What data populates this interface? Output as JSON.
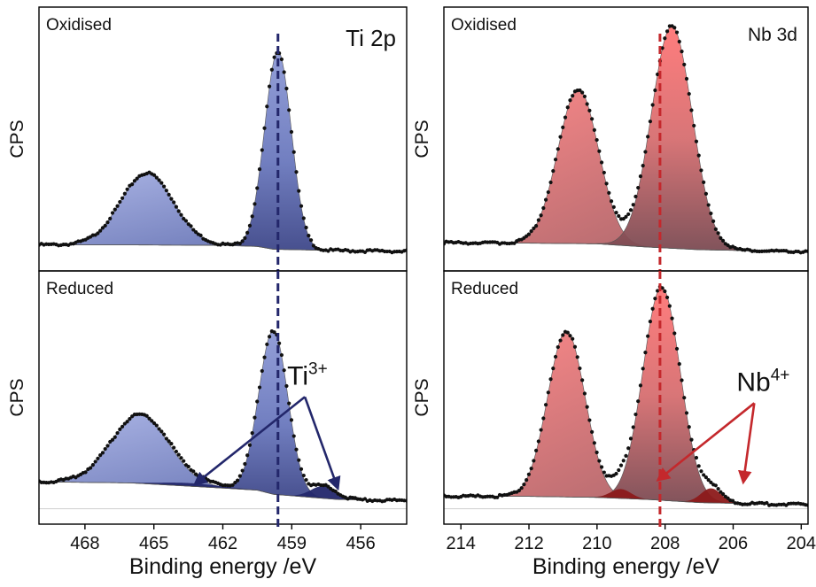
{
  "chart_data": [
    {
      "type": "line",
      "panel_label": "Oxidised",
      "element_label": "Ti 2p",
      "ylabel": "CPS",
      "xlabel": "",
      "xlim": [
        470,
        454
      ],
      "x_reversed": true,
      "xticks": [
        468,
        465,
        462,
        459,
        456
      ],
      "marker_line_x": 459.6,
      "background": {
        "x": [
          470,
          466,
          462,
          460.5,
          459.8,
          457,
          454
        ],
        "y": [
          0.03,
          0.03,
          0.028,
          0.023,
          0.01,
          0.004,
          0.0
        ]
      },
      "components": [
        {
          "center": 465.3,
          "height": 0.33,
          "width": 1.15
        },
        {
          "center": 459.6,
          "height": 0.91,
          "width": 0.58
        }
      ],
      "components_color": "#5c6bb0",
      "points_color": "#111111"
    },
    {
      "type": "line",
      "panel_label": "Reduced",
      "element_label": "",
      "ylabel": "CPS",
      "xlabel": "Binding energy /eV",
      "xlim": [
        470,
        454
      ],
      "x_reversed": true,
      "xticks": [
        468,
        465,
        462,
        459,
        456
      ],
      "marker_line_x": 459.6,
      "annotation": {
        "base": "Ti",
        "sup": "3+",
        "x": 459.2,
        "y": 0.58
      },
      "arrow_targets": [
        {
          "x": 463.2,
          "y": 0.1
        },
        {
          "x": 457.0,
          "y": 0.08
        }
      ],
      "background": {
        "x": [
          470,
          466,
          462,
          460.5,
          459.8,
          457,
          454
        ],
        "y": [
          0.11,
          0.105,
          0.08,
          0.07,
          0.05,
          0.025,
          0.02
        ]
      },
      "components": [
        {
          "center": 465.6,
          "height": 0.33,
          "width": 1.25
        },
        {
          "center": 459.8,
          "height": 0.79,
          "width": 0.63
        }
      ],
      "minor_components": [
        {
          "center": 463.4,
          "height": 0.015,
          "width": 1.3
        },
        {
          "center": 457.6,
          "height": 0.06,
          "width": 0.55
        }
      ],
      "components_color": "#5c6bb0",
      "minor_color": "#23276b",
      "points_color": "#111111"
    },
    {
      "type": "line",
      "panel_label": "Oxidised",
      "element_label": "Nb 3d",
      "ylabel": "CPS",
      "xlabel": "",
      "xlim": [
        214.5,
        203.8
      ],
      "x_reversed": true,
      "xticks": [
        214,
        212,
        210,
        208,
        206,
        204
      ],
      "marker_line_x": 208.15,
      "background": {
        "x": [
          214.5,
          212,
          210,
          208.5,
          207,
          205,
          203.8
        ],
        "y": [
          0.04,
          0.038,
          0.035,
          0.02,
          0.008,
          0.002,
          0.0
        ]
      },
      "components": [
        {
          "center": 210.55,
          "height": 0.71,
          "width": 0.6
        },
        {
          "center": 207.8,
          "height": 1.02,
          "width": 0.6
        }
      ],
      "components_color": "#f06868",
      "points_color": "#111111"
    },
    {
      "type": "line",
      "panel_label": "Reduced",
      "element_label": "",
      "ylabel": "CPS",
      "xlabel": "Binding energy /eV",
      "xlim": [
        214.5,
        203.8
      ],
      "x_reversed": true,
      "xticks": [
        214,
        212,
        210,
        208,
        206,
        204
      ],
      "marker_line_x": 208.15,
      "annotation": {
        "base": "Nb",
        "sup": "4+",
        "x": 205.9,
        "y": 0.55
      },
      "arrow_targets": [
        {
          "x": 208.2,
          "y": 0.12
        },
        {
          "x": 205.7,
          "y": 0.11
        }
      ],
      "background": {
        "x": [
          214.5,
          212,
          210,
          208.5,
          207,
          205,
          203.8
        ],
        "y": [
          0.04,
          0.04,
          0.035,
          0.025,
          0.01,
          0.003,
          0.0
        ]
      },
      "components": [
        {
          "center": 210.9,
          "height": 0.8,
          "width": 0.55
        },
        {
          "center": 208.1,
          "height": 1.03,
          "width": 0.55
        }
      ],
      "minor_components": [
        {
          "center": 209.3,
          "height": 0.045,
          "width": 0.3
        },
        {
          "center": 206.65,
          "height": 0.07,
          "width": 0.3
        }
      ],
      "components_color": "#f06868",
      "minor_color": "#8c1a1a",
      "points_color": "#111111"
    }
  ]
}
